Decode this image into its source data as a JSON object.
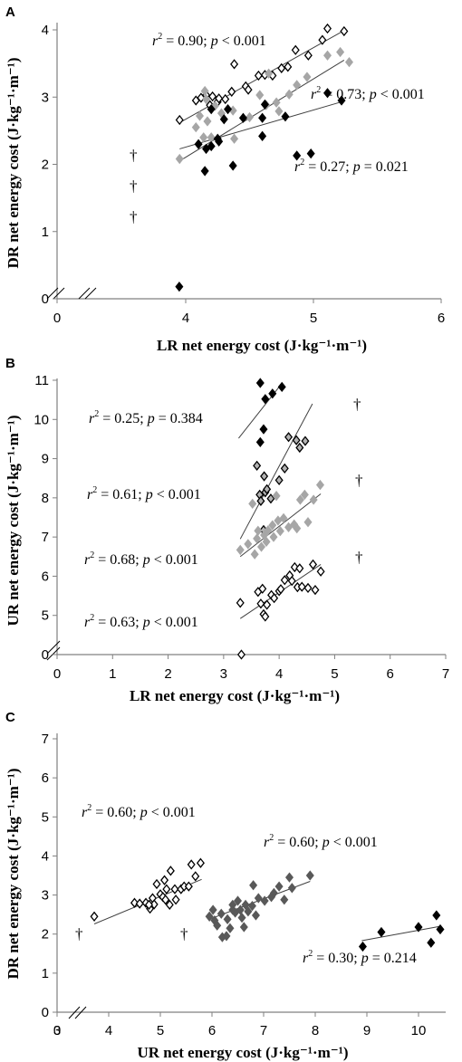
{
  "chart_data": [
    {
      "type": "scatter",
      "panel_label": "A",
      "xlabel": "LR net energy cost (J·kg⁻¹·m⁻¹)",
      "ylabel": "DR net energy cost (J·kg⁻¹·m⁻¹)",
      "xlim": [
        0,
        6
      ],
      "ylim": [
        0,
        4.2
      ],
      "xticks": [
        "0",
        "4",
        "5",
        "6"
      ],
      "yticks": [
        "0",
        "1",
        "2",
        "3",
        "4"
      ],
      "axis_break": true,
      "xticks_values": [
        0,
        4,
        5,
        6
      ],
      "yticks_values": [
        0,
        1,
        2,
        3,
        4
      ],
      "series": [
        {
          "marker": "open-diamond",
          "color": "#ffffff",
          "points": [
            [
              3.81,
              2.66
            ],
            [
              4.08,
              2.95
            ],
            [
              4.12,
              2.99
            ],
            [
              4.16,
              3.03
            ],
            [
              4.19,
              2.88
            ],
            [
              4.21,
              3.01
            ],
            [
              4.25,
              2.93
            ],
            [
              4.26,
              2.98
            ],
            [
              4.31,
              2.97
            ],
            [
              4.36,
              3.08
            ],
            [
              4.38,
              3.49
            ],
            [
              4.47,
              3.16
            ],
            [
              4.49,
              3.11
            ],
            [
              4.57,
              3.32
            ],
            [
              4.62,
              3.33
            ],
            [
              4.68,
              3.32
            ],
            [
              4.75,
              3.43
            ],
            [
              4.8,
              3.45
            ],
            [
              4.86,
              3.7
            ],
            [
              4.96,
              3.62
            ],
            [
              5.07,
              3.85
            ],
            [
              5.11,
              4.02
            ],
            [
              5.24,
              3.98
            ]
          ],
          "fit": [
            [
              3.81,
              2.62
            ],
            [
              5.24,
              3.99
            ]
          ]
        },
        {
          "marker": "diamond",
          "color": "#a6a6a6",
          "points": [
            [
              3.81,
              2.08
            ],
            [
              4.08,
              2.55
            ],
            [
              4.11,
              2.72
            ],
            [
              4.14,
              2.4
            ],
            [
              4.15,
              3.09
            ],
            [
              4.16,
              2.97
            ],
            [
              4.17,
              2.64
            ],
            [
              4.2,
              2.4
            ],
            [
              4.23,
              2.87
            ],
            [
              4.28,
              2.76
            ],
            [
              4.37,
              2.8
            ],
            [
              4.38,
              2.38
            ],
            [
              4.5,
              2.7
            ],
            [
              4.58,
              3.03
            ],
            [
              4.63,
              2.88
            ],
            [
              4.65,
              3.35
            ],
            [
              4.71,
              2.92
            ],
            [
              4.73,
              2.79
            ],
            [
              4.81,
              3.04
            ],
            [
              4.87,
              3.18
            ],
            [
              4.95,
              3.3
            ],
            [
              5.11,
              3.62
            ],
            [
              5.21,
              3.67
            ],
            [
              5.28,
              3.52
            ]
          ],
          "fit": [
            [
              3.81,
              2.05
            ],
            [
              5.24,
              3.55
            ]
          ]
        },
        {
          "marker": "diamond",
          "color": "#000000",
          "points": [
            [
              3.8,
              0.18
            ],
            [
              4.1,
              2.3
            ],
            [
              4.15,
              1.9
            ],
            [
              4.16,
              2.23
            ],
            [
              4.2,
              2.27
            ],
            [
              4.2,
              2.82
            ],
            [
              4.25,
              2.38
            ],
            [
              4.26,
              2.34
            ],
            [
              4.3,
              2.67
            ],
            [
              4.33,
              2.82
            ],
            [
              4.37,
              1.98
            ],
            [
              4.45,
              2.69
            ],
            [
              4.6,
              2.42
            ],
            [
              4.6,
              2.69
            ],
            [
              4.62,
              2.89
            ],
            [
              4.78,
              2.71
            ],
            [
              4.87,
              2.13
            ],
            [
              4.98,
              2.16
            ],
            [
              5.11,
              3.06
            ],
            [
              5.22,
              2.95
            ]
          ],
          "fit": [
            [
              3.81,
              2.23
            ],
            [
              5.24,
              2.94
            ]
          ]
        }
      ],
      "annotations": [
        "r² = 0.90; p < 0.001",
        "r² = 0.73; p < 0.001",
        "r² = 0.27; p = 0.021"
      ],
      "daggers": [
        "†",
        "†",
        "†"
      ]
    },
    {
      "type": "scatter",
      "panel_label": "B",
      "xlabel": "LR net energy cost (J·kg⁻¹·m⁻¹)",
      "ylabel": "UR net energy cost (J·kg⁻¹·m⁻¹)",
      "xlim": [
        0,
        7
      ],
      "ylim": [
        0,
        11.2
      ],
      "xticks": [
        "0",
        "1",
        "2",
        "3",
        "4",
        "5",
        "6",
        "7"
      ],
      "yticks": [
        "0",
        "5",
        "6",
        "7",
        "8",
        "9",
        "10",
        "11"
      ],
      "axis_break": true,
      "xticks_values": [
        0,
        1,
        2,
        3,
        4,
        5,
        6,
        7
      ],
      "yticks_values": [
        0,
        5,
        6,
        7,
        8,
        9,
        10,
        11
      ],
      "series": [
        {
          "marker": "diamond",
          "color": "#000000",
          "points": [
            [
              3.66,
              10.93
            ],
            [
              3.66,
              9.42
            ],
            [
              3.72,
              9.75
            ],
            [
              3.75,
              10.52
            ],
            [
              3.88,
              10.66
            ],
            [
              4.05,
              10.83
            ]
          ],
          "fit": [
            [
              3.27,
              9.52
            ],
            [
              4.05,
              10.92
            ]
          ]
        },
        {
          "marker": "diamond-gray-outline",
          "color": "#b3b3b3",
          "points": [
            [
              3.6,
              8.82
            ],
            [
              3.65,
              8.08
            ],
            [
              3.67,
              7.92
            ],
            [
              3.73,
              8.55
            ],
            [
              3.75,
              8.14
            ],
            [
              3.78,
              8.22
            ],
            [
              3.85,
              7.98
            ],
            [
              4.0,
              8.45
            ],
            [
              4.1,
              8.75
            ],
            [
              4.17,
              9.55
            ],
            [
              4.31,
              9.47
            ],
            [
              4.37,
              9.28
            ],
            [
              4.47,
              9.45
            ],
            [
              3.72,
              7.18
            ]
          ],
          "fit": [
            [
              3.3,
              6.95
            ],
            [
              4.6,
              10.4
            ]
          ]
        },
        {
          "marker": "diamond",
          "color": "#a6a6a6",
          "points": [
            [
              3.3,
              6.67
            ],
            [
              3.44,
              6.82
            ],
            [
              3.56,
              6.56
            ],
            [
              3.6,
              6.96
            ],
            [
              3.62,
              7.16
            ],
            [
              3.68,
              6.75
            ],
            [
              3.73,
              7.05
            ],
            [
              3.77,
              6.88
            ],
            [
              3.8,
              7.17
            ],
            [
              3.88,
              7.3
            ],
            [
              3.9,
              7.0
            ],
            [
              3.98,
              7.42
            ],
            [
              4.02,
              7.15
            ],
            [
              4.08,
              7.48
            ],
            [
              4.17,
              7.25
            ],
            [
              4.27,
              7.32
            ],
            [
              4.32,
              7.22
            ],
            [
              4.38,
              7.95
            ],
            [
              4.46,
              8.08
            ],
            [
              4.52,
              7.38
            ],
            [
              4.62,
              7.95
            ],
            [
              4.74,
              8.33
            ],
            [
              3.52,
              7.85
            ],
            [
              3.95,
              8.05
            ]
          ],
          "fit": [
            [
              3.3,
              6.5
            ],
            [
              4.75,
              8.1
            ]
          ]
        },
        {
          "marker": "open-diamond",
          "color": "#ffffff",
          "points": [
            [
              3.3,
              5.32
            ],
            [
              3.32,
              0.3
            ],
            [
              3.62,
              5.6
            ],
            [
              3.67,
              5.3
            ],
            [
              3.7,
              5.68
            ],
            [
              3.72,
              5.03
            ],
            [
              3.75,
              4.97
            ],
            [
              3.78,
              5.27
            ],
            [
              3.86,
              5.52
            ],
            [
              3.91,
              5.44
            ],
            [
              4.0,
              5.62
            ],
            [
              4.03,
              5.67
            ],
            [
              4.1,
              5.9
            ],
            [
              4.19,
              6.02
            ],
            [
              4.23,
              5.88
            ],
            [
              4.28,
              6.23
            ],
            [
              4.33,
              5.72
            ],
            [
              4.37,
              6.2
            ],
            [
              4.41,
              5.73
            ],
            [
              4.52,
              5.7
            ],
            [
              4.61,
              6.3
            ],
            [
              4.65,
              5.65
            ],
            [
              4.75,
              6.12
            ]
          ],
          "fit": [
            [
              3.3,
              4.92
            ],
            [
              4.75,
              6.3
            ]
          ]
        }
      ],
      "annotations": [
        "r² = 0.25; p = 0.384",
        "r² = 0.61; p < 0.001",
        "r² = 0.68; p < 0.001",
        "r² = 0.63; p < 0.001"
      ],
      "daggers": [
        "†",
        "†",
        "†"
      ]
    },
    {
      "type": "scatter",
      "panel_label": "C",
      "xlabel": "UR net energy cost (J·kg⁻¹·m⁻¹)",
      "ylabel": "DR net energy cost (J·kg⁻¹·m⁻¹)",
      "xlim": [
        0,
        10.5
      ],
      "ylim": [
        0,
        7
      ],
      "xticks": [
        "0",
        "3",
        "4",
        "5",
        "6",
        "7",
        "8",
        "9",
        "10"
      ],
      "yticks": [
        "0",
        "1",
        "2",
        "3",
        "4",
        "5",
        "6",
        "7"
      ],
      "axis_break": true,
      "xticks_values": [
        0,
        3,
        4,
        5,
        6,
        7,
        8,
        9,
        10
      ],
      "yticks_values": [
        0,
        1,
        2,
        3,
        4,
        5,
        6,
        7
      ],
      "series": [
        {
          "marker": "open-diamond",
          "color": "#ffffff",
          "points": [
            [
              3.72,
              2.45
            ],
            [
              4.5,
              2.8
            ],
            [
              4.6,
              2.78
            ],
            [
              4.72,
              2.8
            ],
            [
              4.8,
              2.65
            ],
            [
              4.85,
              2.92
            ],
            [
              4.88,
              2.76
            ],
            [
              4.93,
              3.28
            ],
            [
              5.0,
              3.02
            ],
            [
              5.05,
              2.95
            ],
            [
              5.1,
              2.88
            ],
            [
              5.12,
              3.15
            ],
            [
              5.18,
              2.75
            ],
            [
              5.2,
              3.62
            ],
            [
              5.28,
              3.15
            ],
            [
              5.3,
              2.88
            ],
            [
              5.4,
              3.15
            ],
            [
              5.46,
              3.22
            ],
            [
              5.55,
              3.22
            ],
            [
              5.6,
              3.78
            ],
            [
              5.68,
              3.48
            ],
            [
              5.78,
              3.82
            ],
            [
              4.78,
              2.75
            ],
            [
              5.08,
              3.38
            ]
          ],
          "fit": [
            [
              3.72,
              2.26
            ],
            [
              5.8,
              3.4
            ]
          ]
        },
        {
          "marker": "diamond",
          "color": "#595959",
          "points": [
            [
              5.95,
              2.45
            ],
            [
              6.02,
              2.62
            ],
            [
              6.05,
              2.35
            ],
            [
              6.1,
              2.22
            ],
            [
              6.18,
              2.52
            ],
            [
              6.2,
              1.92
            ],
            [
              6.28,
              1.95
            ],
            [
              6.3,
              2.38
            ],
            [
              6.35,
              2.15
            ],
            [
              6.4,
              2.75
            ],
            [
              6.45,
              2.55
            ],
            [
              6.5,
              2.85
            ],
            [
              6.55,
              2.62
            ],
            [
              6.58,
              2.42
            ],
            [
              6.65,
              2.75
            ],
            [
              6.7,
              2.58
            ],
            [
              6.78,
              2.72
            ],
            [
              6.8,
              3.25
            ],
            [
              6.85,
              2.48
            ],
            [
              6.9,
              2.92
            ],
            [
              7.02,
              2.85
            ],
            [
              7.15,
              2.95
            ],
            [
              7.2,
              3.05
            ],
            [
              7.3,
              3.22
            ],
            [
              7.4,
              2.88
            ],
            [
              7.5,
              3.45
            ],
            [
              7.55,
              3.18
            ],
            [
              7.9,
              3.5
            ],
            [
              6.62,
              2.18
            ],
            [
              6.4,
              2.62
            ]
          ],
          "fit": [
            [
              5.95,
              2.38
            ],
            [
              7.9,
              3.35
            ]
          ]
        },
        {
          "marker": "diamond",
          "color": "#000000",
          "points": [
            [
              8.92,
              1.68
            ],
            [
              9.28,
              2.05
            ],
            [
              10.0,
              2.18
            ],
            [
              10.23,
              1.78
            ],
            [
              10.33,
              2.48
            ],
            [
              10.4,
              2.12
            ]
          ],
          "fit": [
            [
              8.9,
              1.83
            ],
            [
              10.4,
              2.2
            ]
          ]
        }
      ],
      "annotations": [
        "r² = 0.60; p  < 0.001",
        "r² = 0.60; p < 0.001",
        "r² = 0.30; p = 0.214"
      ],
      "daggers": [
        "†",
        "†"
      ]
    }
  ]
}
